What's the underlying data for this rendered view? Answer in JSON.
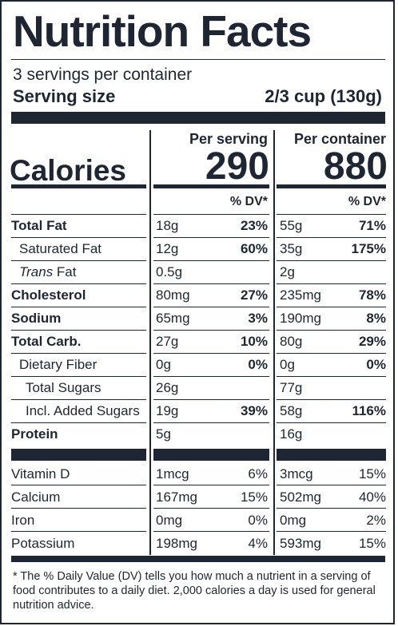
{
  "title": "Nutrition Facts",
  "servings_per_container": "3 servings per container",
  "serving_size": {
    "label": "Serving size",
    "value": "2/3 cup (130g)"
  },
  "calories": {
    "label": "Calories",
    "per_serving_header": "Per serving",
    "per_container_header": "Per container",
    "per_serving": "290",
    "per_container": "880"
  },
  "dv_header": "% DV*",
  "nutrients": [
    {
      "name": "Total Fat",
      "bold": true,
      "indent": 0,
      "serving_amount": "18g",
      "serving_dv": "23%",
      "container_amount": "55g",
      "container_dv": "71%"
    },
    {
      "name": "Saturated Fat",
      "bold": false,
      "indent": 1,
      "serving_amount": "12g",
      "serving_dv": "60%",
      "container_amount": "35g",
      "container_dv": "175%"
    },
    {
      "name_italic": "Trans",
      "name_rest": " Fat",
      "bold": false,
      "indent": 1,
      "serving_amount": "0.5g",
      "serving_dv": "",
      "container_amount": "2g",
      "container_dv": ""
    },
    {
      "name": "Cholesterol",
      "bold": true,
      "indent": 0,
      "serving_amount": "80mg",
      "serving_dv": "27%",
      "container_amount": "235mg",
      "container_dv": "78%"
    },
    {
      "name": "Sodium",
      "bold": true,
      "indent": 0,
      "serving_amount": "65mg",
      "serving_dv": "3%",
      "container_amount": "190mg",
      "container_dv": "8%"
    },
    {
      "name": "Total Carb.",
      "bold": true,
      "indent": 0,
      "serving_amount": "27g",
      "serving_dv": "10%",
      "container_amount": "80g",
      "container_dv": "29%"
    },
    {
      "name": "Dietary Fiber",
      "bold": false,
      "indent": 1,
      "serving_amount": "0g",
      "serving_dv": "0%",
      "container_amount": "0g",
      "container_dv": "0%"
    },
    {
      "name": "Total Sugars",
      "bold": false,
      "indent": 2,
      "serving_amount": "26g",
      "serving_dv": "",
      "container_amount": "77g",
      "container_dv": ""
    },
    {
      "name": "Incl. Added Sugars",
      "bold": false,
      "indent": 2,
      "serving_amount": "19g",
      "serving_dv": "39%",
      "container_amount": "58g",
      "container_dv": "116%"
    },
    {
      "name": "Protein",
      "bold": true,
      "indent": 0,
      "serving_amount": "5g",
      "serving_dv": "",
      "container_amount": "16g",
      "container_dv": ""
    }
  ],
  "vitamins": [
    {
      "name": "Vitamin D",
      "serving_amount": "1mcg",
      "serving_dv": "6%",
      "container_amount": "3mcg",
      "container_dv": "15%"
    },
    {
      "name": "Calcium",
      "serving_amount": "167mg",
      "serving_dv": "15%",
      "container_amount": "502mg",
      "container_dv": "40%"
    },
    {
      "name": "Iron",
      "serving_amount": "0mg",
      "serving_dv": "0%",
      "container_amount": "0mg",
      "container_dv": "2%"
    },
    {
      "name": "Potassium",
      "serving_amount": "198mg",
      "serving_dv": "4%",
      "container_amount": "593mg",
      "container_dv": "15%"
    }
  ],
  "footnote": "* The % Daily Value (DV) tells you how much a nutrient in a serving of food contributes to a daily diet. 2,000 calories a day is used for general nutrition advice."
}
